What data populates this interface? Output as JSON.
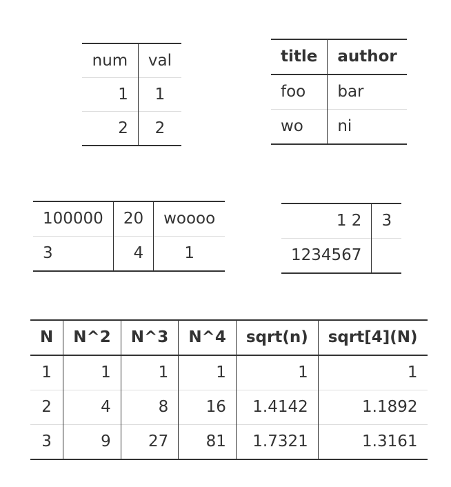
{
  "table_num_val": {
    "headers": [
      "num",
      "val"
    ],
    "rows": [
      [
        "1",
        "1"
      ],
      [
        "2",
        "2"
      ]
    ]
  },
  "table_title_author": {
    "headers": [
      "title",
      "author"
    ],
    "rows": [
      [
        "foo",
        "bar"
      ],
      [
        "wo",
        "ni"
      ]
    ]
  },
  "table_three_col": {
    "rows": [
      [
        "100000",
        "20",
        "woooo"
      ],
      [
        "3",
        "4",
        "1"
      ]
    ]
  },
  "table_two_col": {
    "rows": [
      [
        "1 2",
        "3"
      ],
      [
        "1234567",
        ""
      ]
    ]
  },
  "table_powers": {
    "headers": [
      "N",
      "N^2",
      "N^3",
      "N^4",
      "sqrt(n)",
      "sqrt[4](N)"
    ],
    "rows": [
      [
        "1",
        "1",
        "1",
        "1",
        "1",
        "1"
      ],
      [
        "2",
        "4",
        "8",
        "16",
        "1.4142",
        "1.1892"
      ],
      [
        "3",
        "9",
        "27",
        "81",
        "1.7321",
        "1.3161"
      ]
    ]
  }
}
